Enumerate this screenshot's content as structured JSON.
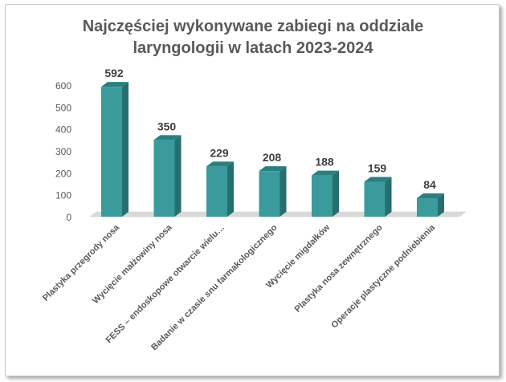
{
  "chart_data": {
    "type": "bar",
    "title_line1": "Najczęściej wykonywane zabiegi na oddziale",
    "title_line2": "laryngologii w latach 2023-2024",
    "categories": [
      "Plastyka przegrody nosa",
      "Wycięcie małżowiny nosa",
      "FESS – endoskopowe otwarcie wielu…",
      "Badanie w czasie snu farmakologicznego",
      "Wycięcie migdałków",
      "Plastyka nosa zewnętrznego",
      "Operacje plastyczne podniebienia"
    ],
    "values": [
      592,
      350,
      229,
      208,
      188,
      159,
      84
    ],
    "yticks": [
      0,
      100,
      200,
      300,
      400,
      500,
      600
    ],
    "ylim": [
      0,
      600
    ],
    "grid": false,
    "legend": "none",
    "colors": {
      "front": "#3a9a9c",
      "side": "#256f70",
      "top": "#2b7f80",
      "floor": "#d9d9d9"
    }
  }
}
